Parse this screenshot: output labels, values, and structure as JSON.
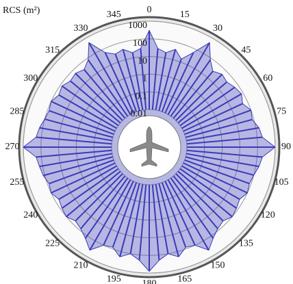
{
  "chart_data": {
    "type": "polar",
    "radial_label": "RCS (m²)",
    "theta": [
      0,
      5,
      10,
      15,
      20,
      25,
      30,
      35,
      40,
      45,
      50,
      55,
      60,
      65,
      70,
      75,
      80,
      85,
      90,
      95,
      100,
      105,
      110,
      115,
      120,
      125,
      130,
      135,
      140,
      145,
      150,
      155,
      160,
      165,
      170,
      175,
      180,
      185,
      190,
      195,
      200,
      205,
      210,
      215,
      220,
      225,
      230,
      235,
      240,
      245,
      250,
      255,
      260,
      265,
      270,
      275,
      280,
      285,
      290,
      295,
      300,
      305,
      310,
      315,
      320,
      325,
      330,
      335,
      340,
      345,
      350,
      355
    ],
    "series": [
      {
        "color": "#3a3ab8",
        "values": [
          300,
          30,
          20,
          40,
          15,
          60,
          500,
          80,
          30,
          50,
          40,
          60,
          80,
          50,
          100,
          80,
          150,
          200,
          1000,
          200,
          150,
          100,
          80,
          100,
          60,
          80,
          100,
          60,
          80,
          150,
          400,
          100,
          80,
          200,
          100,
          200,
          800,
          200,
          100,
          200,
          80,
          100,
          400,
          150,
          80,
          60,
          100,
          80,
          60,
          100,
          80,
          120,
          150,
          200,
          1000,
          200,
          150,
          100,
          80,
          100,
          60,
          80,
          50,
          60,
          40,
          80,
          500,
          60,
          30,
          40,
          20,
          30
        ]
      }
    ],
    "rlim": [
      0.01,
      1000
    ],
    "rscale": "log",
    "rticks": [
      0.01,
      0.1,
      1,
      10,
      100,
      1000
    ],
    "theta_ticks": [
      0,
      15,
      30,
      45,
      60,
      75,
      90,
      105,
      120,
      135,
      150,
      165,
      180,
      195,
      210,
      225,
      240,
      255,
      270,
      285,
      300,
      315,
      330,
      345
    ],
    "direction": "clockwise",
    "zero_location": "top",
    "grid": true
  }
}
